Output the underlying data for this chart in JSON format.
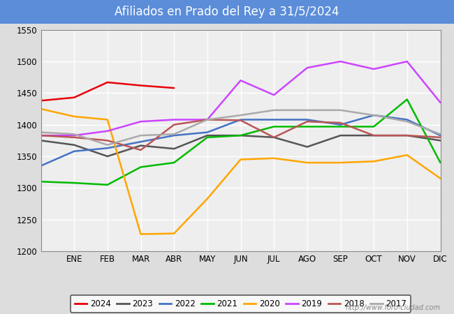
{
  "title": "Afiliados en Prado del Rey a 31/5/2024",
  "title_color": "white",
  "title_bg_color": "#5B8DD9",
  "ylim": [
    1200,
    1550
  ],
  "yticks": [
    1200,
    1250,
    1300,
    1350,
    1400,
    1450,
    1500,
    1550
  ],
  "months": [
    "",
    "ENE",
    "FEB",
    "MAR",
    "ABR",
    "MAY",
    "JUN",
    "JUL",
    "AGO",
    "SEP",
    "OCT",
    "NOV",
    "DIC"
  ],
  "watermark": "http://www.foro-ciudad.com",
  "series": {
    "2024": {
      "color": "#E8000A",
      "values": [
        1438,
        1443,
        1467,
        1462,
        1458,
        null,
        null,
        null,
        null,
        null,
        null,
        null,
        null
      ]
    },
    "2023": {
      "color": "#555555",
      "values": [
        1375,
        1368,
        1350,
        1367,
        1362,
        1383,
        1383,
        1380,
        1365,
        1383,
        1383,
        1383,
        1375
      ]
    },
    "2022": {
      "color": "#4472C4",
      "values": [
        1335,
        1358,
        1363,
        1373,
        1383,
        1388,
        1408,
        1408,
        1408,
        1400,
        1415,
        1408,
        1383
      ]
    },
    "2021": {
      "color": "#00BB00",
      "values": [
        1310,
        1308,
        1305,
        1333,
        1340,
        1380,
        1383,
        1397,
        1397,
        1397,
        1397,
        1440,
        1340
      ]
    },
    "2020": {
      "color": "#FFA500",
      "values": [
        1425,
        1413,
        1408,
        1227,
        1228,
        1283,
        1345,
        1347,
        1340,
        1340,
        1342,
        1352,
        1315
      ]
    },
    "2019": {
      "color": "#CC44FF",
      "values": [
        1383,
        1383,
        1390,
        1405,
        1408,
        1408,
        1470,
        1447,
        1490,
        1500,
        1488,
        1500,
        1435
      ]
    },
    "2018": {
      "color": "#BB5555",
      "values": [
        1383,
        1380,
        1375,
        1360,
        1400,
        1408,
        1407,
        1380,
        1405,
        1403,
        1383,
        1383,
        1380
      ]
    },
    "2017": {
      "color": "#AAAAAA",
      "values": [
        1388,
        1385,
        1368,
        1383,
        1385,
        1408,
        1415,
        1423,
        1423,
        1423,
        1415,
        1405,
        1385
      ]
    }
  },
  "legend_order": [
    "2024",
    "2023",
    "2022",
    "2021",
    "2020",
    "2019",
    "2018",
    "2017"
  ],
  "bg_color": "#DDDDDD",
  "plot_bg_color": "#EEEEEE",
  "grid_color": "#FFFFFF"
}
